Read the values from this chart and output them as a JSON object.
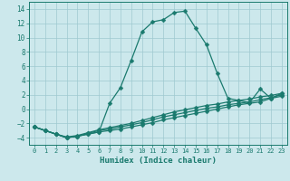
{
  "xlabel": "Humidex (Indice chaleur)",
  "xlim": [
    -0.5,
    23.5
  ],
  "ylim": [
    -5.0,
    15.0
  ],
  "yticks": [
    -4,
    -2,
    0,
    2,
    4,
    6,
    8,
    10,
    12,
    14
  ],
  "xticks": [
    0,
    1,
    2,
    3,
    4,
    5,
    6,
    7,
    8,
    9,
    10,
    11,
    12,
    13,
    14,
    15,
    16,
    17,
    18,
    19,
    20,
    21,
    22,
    23
  ],
  "background_color": "#cce8ec",
  "grid_color": "#9fc9d0",
  "line_color": "#1a7a6e",
  "lines": [
    [
      -2.5,
      -3.0,
      -3.5,
      -4.0,
      -3.8,
      -3.5,
      -3.2,
      0.8,
      3.0,
      6.8,
      10.8,
      12.2,
      12.5,
      13.5,
      13.7,
      11.3,
      9.0,
      5.0,
      1.5,
      1.2,
      0.9,
      2.8,
      1.5,
      2.2
    ],
    [
      -2.5,
      -3.0,
      -3.5,
      -4.0,
      -3.8,
      -3.5,
      -3.2,
      -3.0,
      -2.8,
      -2.5,
      -2.2,
      -1.9,
      -1.5,
      -1.2,
      -0.9,
      -0.6,
      -0.3,
      0.0,
      0.3,
      0.6,
      0.8,
      1.0,
      1.5,
      1.8
    ],
    [
      -2.5,
      -3.0,
      -3.5,
      -4.0,
      -3.8,
      -3.4,
      -3.0,
      -2.8,
      -2.5,
      -2.2,
      -1.9,
      -1.5,
      -1.1,
      -0.8,
      -0.5,
      -0.2,
      0.1,
      0.3,
      0.6,
      0.8,
      1.0,
      1.3,
      1.6,
      2.0
    ],
    [
      -2.5,
      -3.0,
      -3.5,
      -3.9,
      -3.7,
      -3.3,
      -2.9,
      -2.6,
      -2.3,
      -2.0,
      -1.6,
      -1.2,
      -0.8,
      -0.4,
      -0.1,
      0.2,
      0.5,
      0.7,
      1.0,
      1.2,
      1.4,
      1.7,
      1.9,
      2.2
    ]
  ],
  "marker": "D",
  "marker_size": 2.5,
  "linewidth": 0.9,
  "label_fontsize": 6.5,
  "tick_fontsize": 5.5
}
